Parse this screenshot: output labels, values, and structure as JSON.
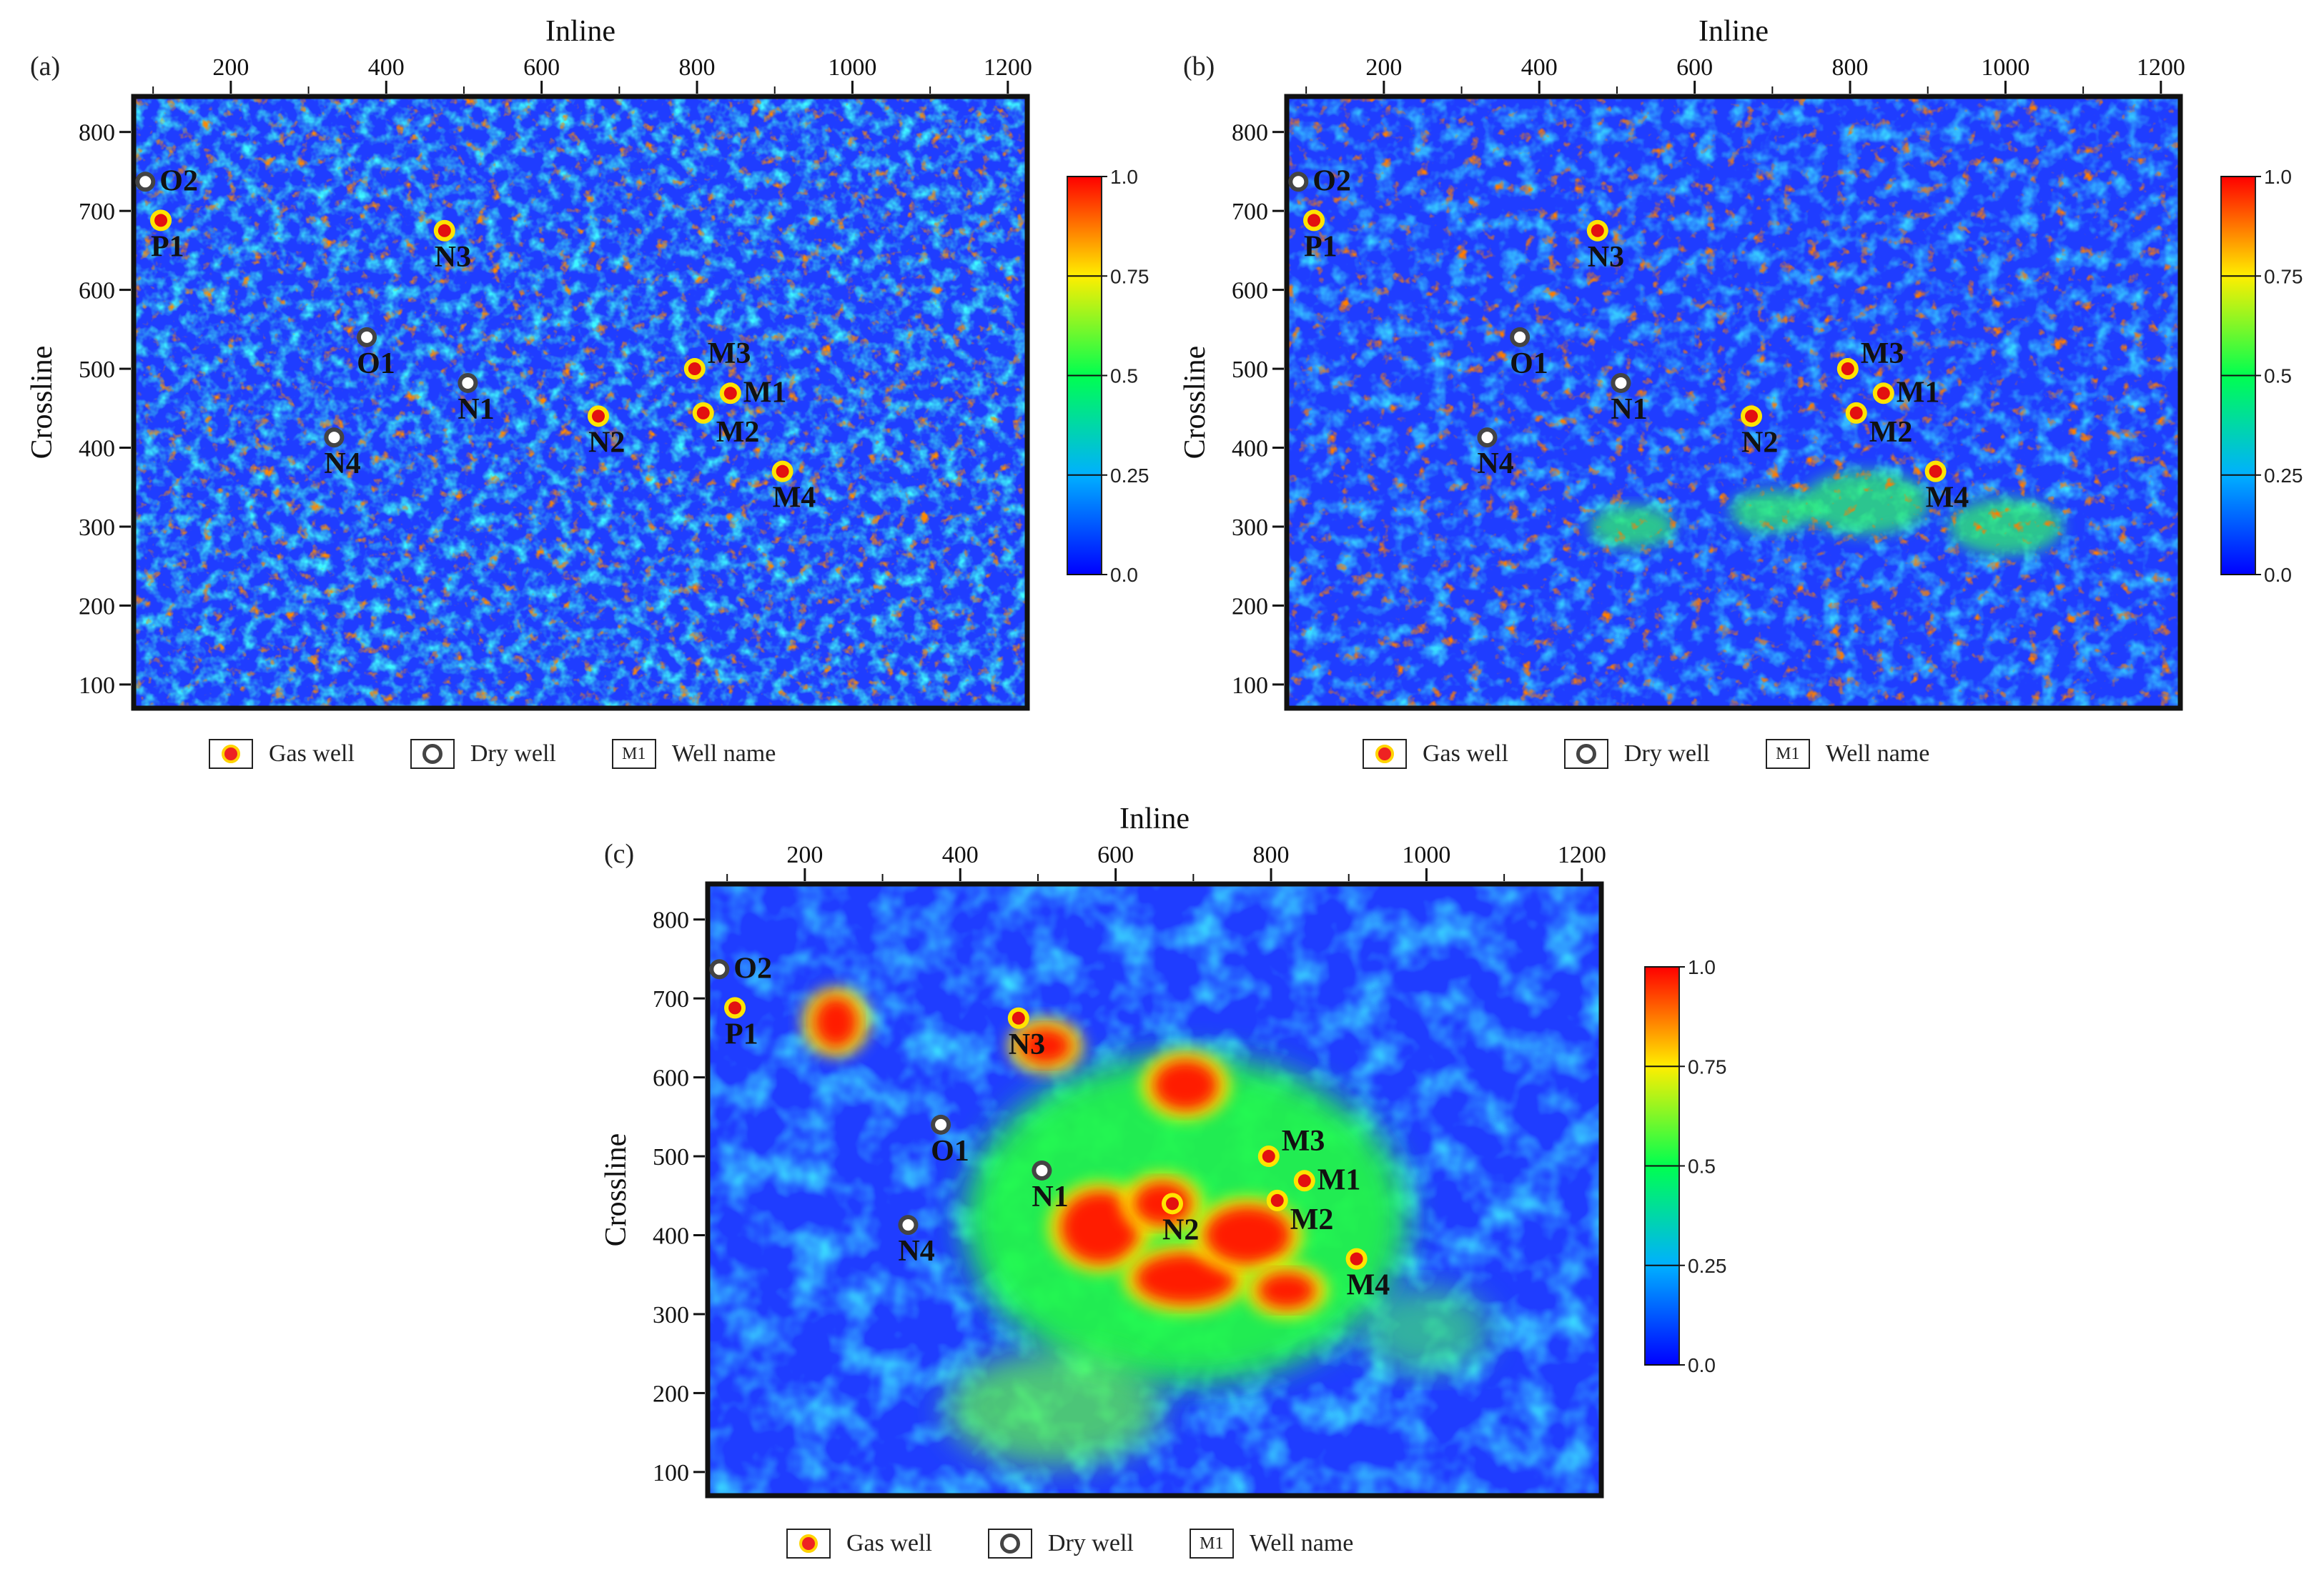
{
  "panels": [
    {
      "label": "(a)",
      "variant": "a"
    },
    {
      "label": "(b)",
      "variant": "b"
    },
    {
      "label": "(c)",
      "variant": "c"
    }
  ],
  "axes": {
    "x_title": "Inline",
    "y_title": "Crossline",
    "x_ticks": [
      200,
      400,
      600,
      800,
      1000,
      1200
    ],
    "y_ticks": [
      100,
      200,
      300,
      400,
      500,
      600,
      700,
      800
    ],
    "x_range": [
      75,
      1225
    ],
    "y_range": [
      70,
      845
    ]
  },
  "colorbar": {
    "ticks": [
      "1.0",
      "0.75",
      "0.5",
      "0.25",
      "0.0"
    ],
    "colors": [
      "#0000ff",
      "#0080ff",
      "#00ffff",
      "#00ff40",
      "#ffff00",
      "#ff8000",
      "#ff0000"
    ]
  },
  "wells": [
    {
      "name": "O2",
      "type": "dry",
      "inline": 90,
      "crossline": 737
    },
    {
      "name": "P1",
      "type": "gas",
      "inline": 110,
      "crossline": 688
    },
    {
      "name": "N3",
      "type": "gas",
      "inline": 475,
      "crossline": 675
    },
    {
      "name": "O1",
      "type": "dry",
      "inline": 375,
      "crossline": 540
    },
    {
      "name": "N1",
      "type": "dry",
      "inline": 505,
      "crossline": 482
    },
    {
      "name": "N4",
      "type": "dry",
      "inline": 333,
      "crossline": 413
    },
    {
      "name": "N2",
      "type": "gas",
      "inline": 673,
      "crossline": 440
    },
    {
      "name": "M3",
      "type": "gas",
      "inline": 797,
      "crossline": 500
    },
    {
      "name": "M1",
      "type": "gas",
      "inline": 843,
      "crossline": 469
    },
    {
      "name": "M2",
      "type": "gas",
      "inline": 808,
      "crossline": 444
    },
    {
      "name": "M4",
      "type": "gas",
      "inline": 910,
      "crossline": 370
    }
  ],
  "legend": {
    "gas_label": "Gas well",
    "dry_label": "Dry well",
    "name_symbol": "M1",
    "name_label": "Well name"
  }
}
